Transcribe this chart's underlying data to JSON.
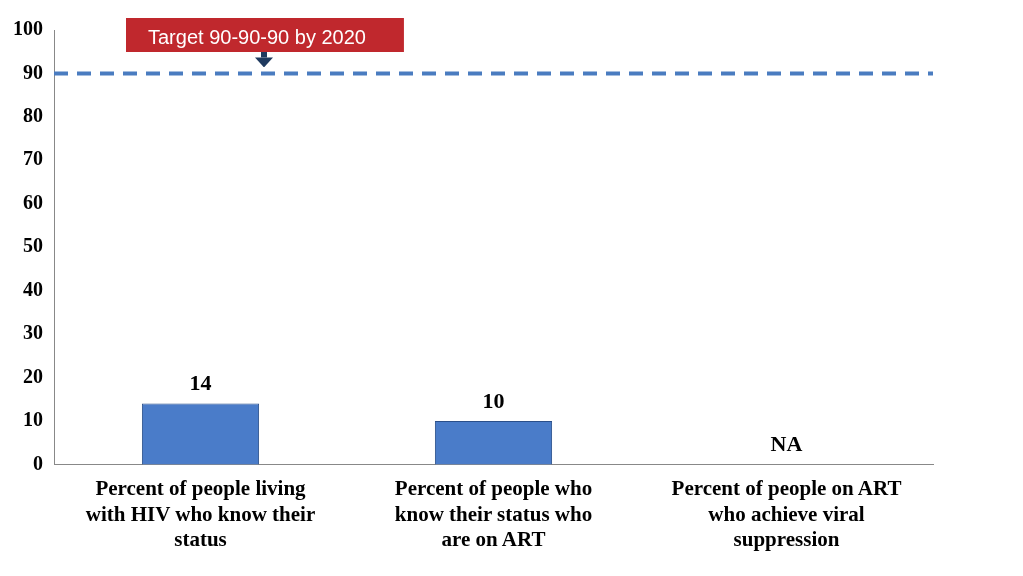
{
  "chart_data": {
    "type": "bar",
    "categories": [
      "Percent of people living with HIV who know their status",
      "Percent of people who know their status who are on ART",
      "Percent of people on ART who achieve viral suppression"
    ],
    "values": [
      14,
      10,
      null
    ],
    "value_labels": [
      "14",
      "10",
      "NA"
    ],
    "color": "#4a7cc9",
    "ylim": [
      0,
      100
    ],
    "yticks": [
      0,
      10,
      20,
      30,
      40,
      50,
      60,
      70,
      80,
      90,
      100
    ],
    "grid": false,
    "legend": false,
    "ref_lines": [
      {
        "axis": "y",
        "value": 90,
        "label": "Target 90-90-90 by 2020",
        "color": "#4a7cc0",
        "line_style": "dashed"
      }
    ]
  }
}
